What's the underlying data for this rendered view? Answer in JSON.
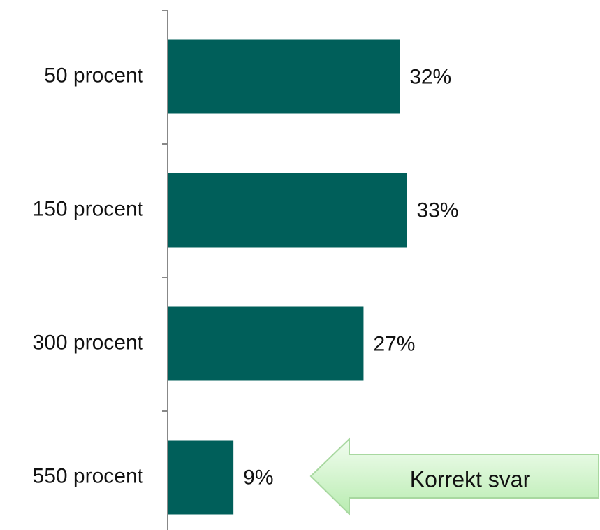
{
  "chart_data": {
    "type": "barh",
    "categories": [
      "50 procent",
      "150 procent",
      "300 procent",
      "550 procent"
    ],
    "values": [
      32,
      33,
      27,
      9
    ],
    "value_labels": [
      "32%",
      "33%",
      "27%",
      "9%"
    ],
    "color": "#005f5a",
    "xlim": [
      0,
      60
    ],
    "annotation": "Korrekt svar"
  }
}
